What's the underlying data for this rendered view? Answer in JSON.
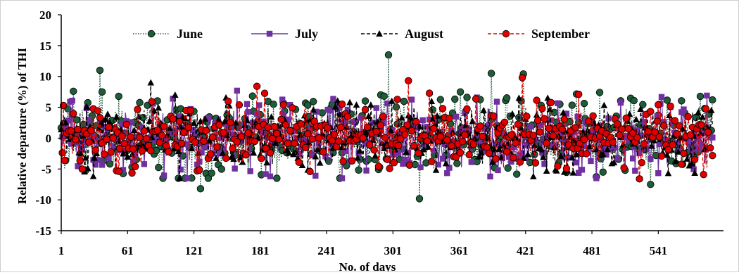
{
  "chart_data": {
    "type": "line",
    "title": "",
    "xlabel": "No. of days",
    "ylabel": "Relative departure (%) of THI",
    "xlim": [
      1,
      600
    ],
    "ylim": [
      -15,
      20
    ],
    "xticks": [
      1,
      61,
      121,
      181,
      241,
      301,
      361,
      421,
      481,
      541
    ],
    "yticks": [
      -15,
      -10,
      -5,
      0,
      5,
      10,
      15,
      20
    ],
    "grid": false,
    "legend": "top",
    "series": [
      {
        "name": "June",
        "color": "#1f5c3a",
        "marker": "circle",
        "line": "dotted"
      },
      {
        "name": "July",
        "color": "#7030a0",
        "marker": "square",
        "line": "solid"
      },
      {
        "name": "August",
        "color": "#000000",
        "marker": "triangle",
        "line": "dash"
      },
      {
        "name": "September",
        "color": "#e00000",
        "marker": "circle",
        "line": "dash"
      }
    ],
    "notable_values": {
      "June": [
        [
          4,
          -5.0
        ],
        [
          12,
          7.6
        ],
        [
          36,
          11.0
        ],
        [
          127,
          -8.2
        ],
        [
          297,
          13.5
        ],
        [
          325,
          -9.8
        ],
        [
          390,
          10.5
        ],
        [
          419,
          10.4
        ],
        [
          534,
          -7.5
        ]
      ],
      "July": [
        [
          160,
          7.7
        ],
        [
          190,
          -6.2
        ],
        [
          255,
          -6.5
        ],
        [
          585,
          6.9
        ]
      ],
      "August": [
        [
          82,
          9.0
        ],
        [
          104,
          7.0
        ],
        [
          300,
          6.0
        ],
        [
          415,
          6.5
        ]
      ],
      "September": [
        [
          124,
          -5.3
        ],
        [
          178,
          8.4
        ],
        [
          315,
          9.3
        ],
        [
          418,
          9.8
        ],
        [
          524,
          -6.6
        ]
      ]
    }
  }
}
